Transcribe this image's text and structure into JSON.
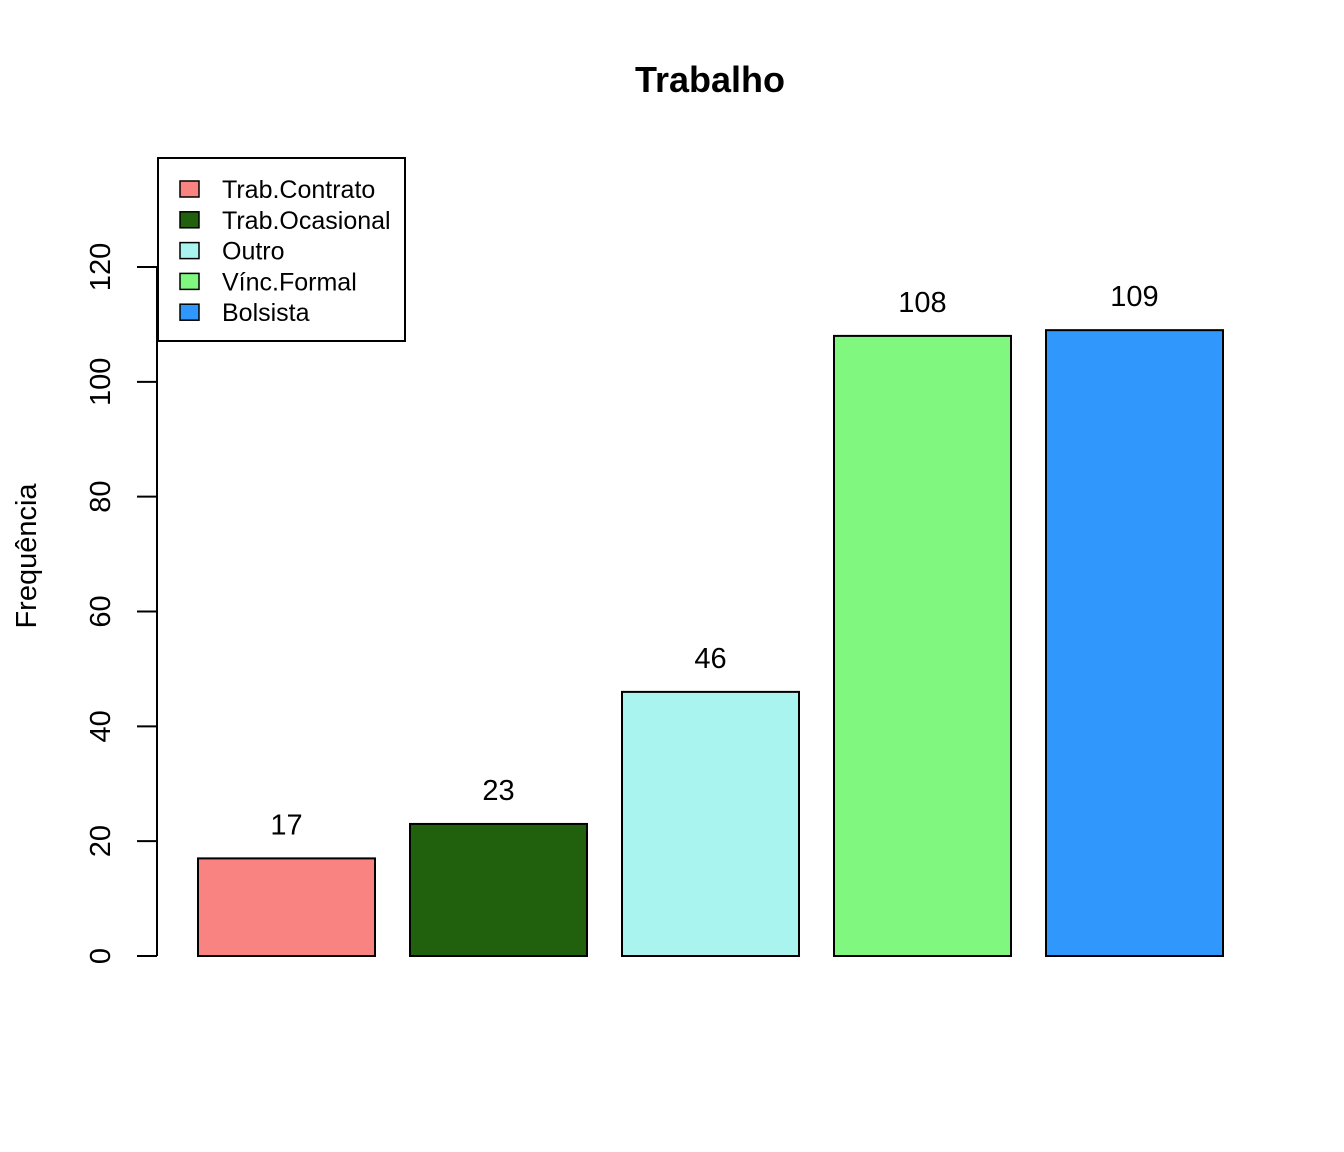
{
  "chart_data": {
    "type": "bar",
    "title": "Trabalho",
    "xlabel": "",
    "ylabel": "Frequência",
    "categories": [
      "Trab.Contrato",
      "Trab.Ocasional",
      "Outro",
      "Vínc.Formal",
      "Bolsista"
    ],
    "values": [
      17,
      23,
      46,
      108,
      109
    ],
    "value_labels": [
      "17",
      "23",
      "46",
      "108",
      "109"
    ],
    "colors": [
      "#f88380",
      "#21600d",
      "#aaf4f0",
      "#80f77f",
      "#3097fd"
    ],
    "ylim": [
      0,
      120
    ],
    "yticks": [
      "0",
      "20",
      "40",
      "60",
      "80",
      "100",
      "120"
    ],
    "grid": false,
    "legend": {
      "position": "top-left",
      "entries": [
        "Trab.Contrato",
        "Trab.Ocasional",
        "Outro",
        "Vínc.Formal",
        "Bolsista"
      ]
    }
  }
}
